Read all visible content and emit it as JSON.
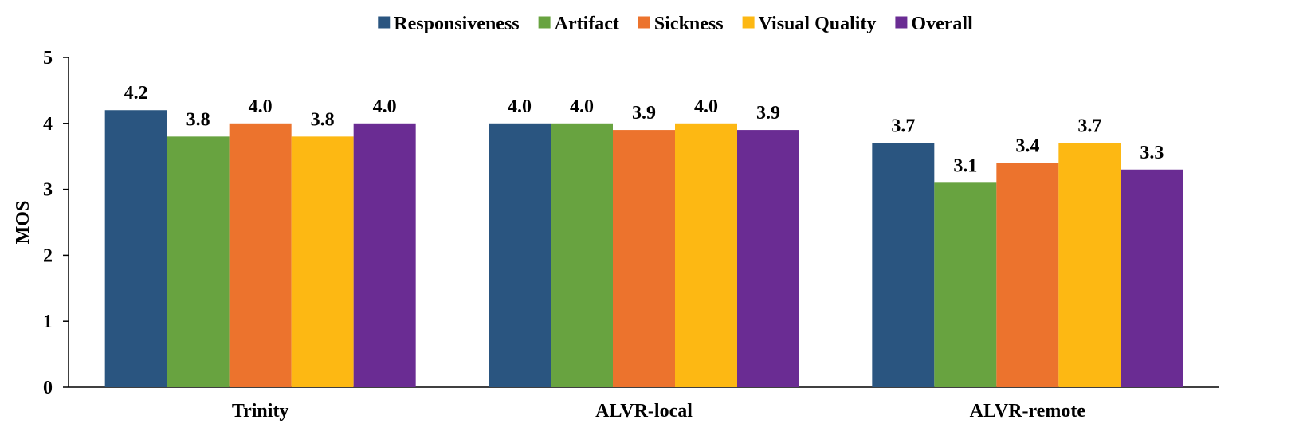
{
  "chart_data": {
    "type": "bar",
    "categories": [
      "Trinity",
      "ALVR-local",
      "ALVR-remote"
    ],
    "series": [
      {
        "name": "Responsiveness",
        "color": "#2a5580",
        "values": [
          4.2,
          4.0,
          3.7
        ],
        "labels": [
          "4.2",
          "4.0",
          "3.7"
        ]
      },
      {
        "name": "Artifact",
        "color": "#68a340",
        "values": [
          3.8,
          4.0,
          3.1
        ],
        "labels": [
          "3.8",
          "4.0",
          "3.1"
        ]
      },
      {
        "name": "Sickness",
        "color": "#ec732d",
        "values": [
          4.0,
          3.9,
          3.4
        ],
        "labels": [
          "4.0",
          "3.9",
          "3.4"
        ]
      },
      {
        "name": "Visual Quality",
        "color": "#fdb813",
        "values": [
          3.8,
          4.0,
          3.7
        ],
        "labels": [
          "3.8",
          "4.0",
          "3.7"
        ]
      },
      {
        "name": "Overall",
        "color": "#6a2c93",
        "values": [
          4.0,
          3.9,
          3.3
        ],
        "labels": [
          "4.0",
          "3.9",
          "3.3"
        ]
      }
    ],
    "ylabel": "MOS",
    "xlabel": "",
    "ylim": [
      0,
      5
    ],
    "yticks": [
      "0",
      "1",
      "2",
      "3",
      "4",
      "5"
    ],
    "grid": false,
    "legend": "top-center"
  }
}
